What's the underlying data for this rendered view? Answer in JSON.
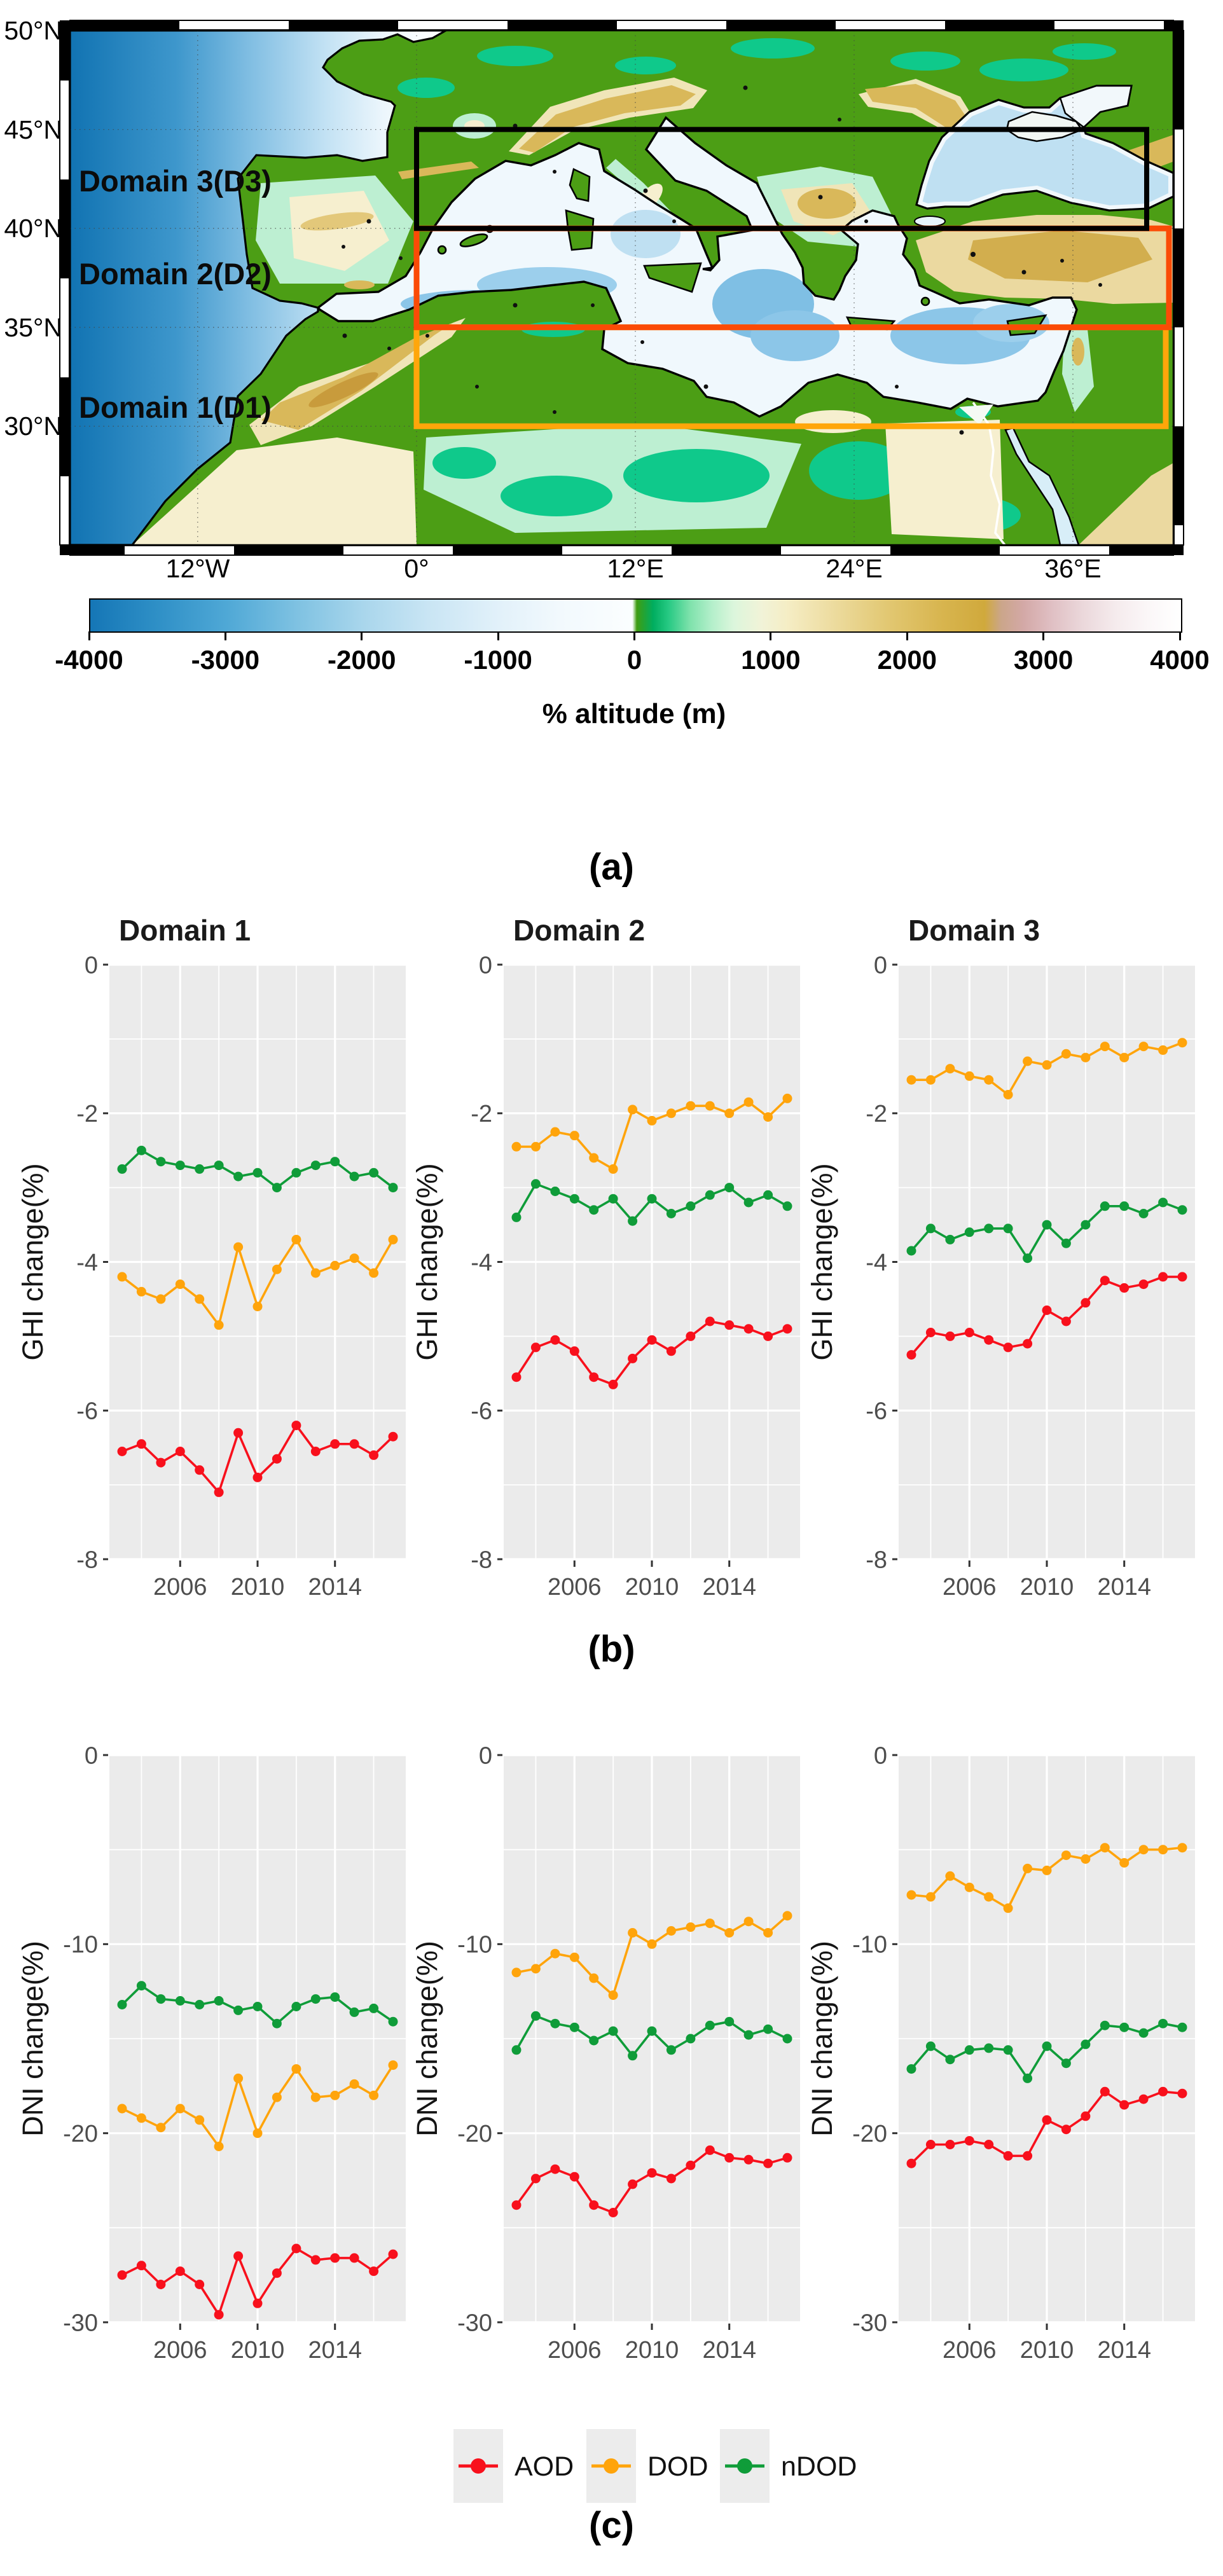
{
  "figure": {
    "panel_labels": {
      "a": "(a)",
      "b": "(b)",
      "c": "(c)"
    }
  },
  "map": {
    "lat_labels": [
      "50°N",
      "45°N",
      "40°N",
      "35°N",
      "30°N"
    ],
    "lon_labels": [
      "12°W",
      "0°",
      "12°E",
      "24°E",
      "36°E"
    ],
    "domains": [
      {
        "label": "Domain 3(D3)",
        "color": "#000000",
        "lat_range": "40N-45N"
      },
      {
        "label": "Domain 2(D2)",
        "color": "#FB4B06",
        "lat_range": "35N-40N"
      },
      {
        "label": "Domain 1(D1)",
        "color": "#FFA60A",
        "lat_range": "30N-35N"
      }
    ]
  },
  "colorbar": {
    "ticks": [
      "-4000",
      "-3000",
      "-2000",
      "-1000",
      "0",
      "1000",
      "2000",
      "3000",
      "4000"
    ],
    "label": "% altitude (m)"
  },
  "legend": {
    "items": [
      {
        "label": "AOD",
        "color": "#F8101C"
      },
      {
        "label": "DOD",
        "color": "#FFA40B"
      },
      {
        "label": "nDOD",
        "color": "#0F9C39"
      }
    ]
  },
  "style": {
    "panel_bg": "#EBEBEB",
    "grid": "#FFFFFF",
    "tick_text": "#4D4D4D",
    "title_text": "#1A1A1A"
  },
  "chart_data": [
    {
      "id": "ghi-d1",
      "type": "line",
      "title": "Domain 1",
      "ylabel": "GHI change(%)",
      "x": [
        2003,
        2004,
        2005,
        2006,
        2007,
        2008,
        2009,
        2010,
        2011,
        2012,
        2013,
        2014,
        2015,
        2016,
        2017
      ],
      "xticks": [
        2006,
        2010,
        2014
      ],
      "xminor": [
        2004,
        2008,
        2012,
        2016
      ],
      "ylim": [
        -8,
        0
      ],
      "yticks": [
        0,
        -2,
        -4,
        -6,
        -8
      ],
      "yminor": [
        -1,
        -3,
        -5,
        -7
      ],
      "series": [
        {
          "name": "AOD",
          "values": [
            -6.55,
            -6.45,
            -6.7,
            -6.55,
            -6.8,
            -7.1,
            -6.3,
            -6.9,
            -6.65,
            -6.2,
            -6.55,
            -6.45,
            -6.45,
            -6.6,
            -6.35
          ]
        },
        {
          "name": "DOD",
          "values": [
            -4.2,
            -4.4,
            -4.5,
            -4.3,
            -4.5,
            -4.85,
            -3.8,
            -4.6,
            -4.1,
            -3.7,
            -4.15,
            -4.05,
            -3.95,
            -4.15,
            -3.7
          ]
        },
        {
          "name": "nDOD",
          "values": [
            -2.75,
            -2.5,
            -2.65,
            -2.7,
            -2.75,
            -2.7,
            -2.85,
            -2.8,
            -3.0,
            -2.8,
            -2.7,
            -2.65,
            -2.85,
            -2.8,
            -3.0
          ]
        }
      ]
    },
    {
      "id": "ghi-d2",
      "type": "line",
      "title": "Domain 2",
      "ylabel": "GHI change(%)",
      "x": [
        2003,
        2004,
        2005,
        2006,
        2007,
        2008,
        2009,
        2010,
        2011,
        2012,
        2013,
        2014,
        2015,
        2016,
        2017
      ],
      "xticks": [
        2006,
        2010,
        2014
      ],
      "xminor": [
        2004,
        2008,
        2012,
        2016
      ],
      "ylim": [
        -8,
        0
      ],
      "yticks": [
        0,
        -2,
        -4,
        -6,
        -8
      ],
      "yminor": [
        -1,
        -3,
        -5,
        -7
      ],
      "series": [
        {
          "name": "AOD",
          "values": [
            -5.55,
            -5.15,
            -5.05,
            -5.2,
            -5.55,
            -5.65,
            -5.3,
            -5.05,
            -5.2,
            -5.0,
            -4.8,
            -4.85,
            -4.9,
            -5.0,
            -4.9
          ]
        },
        {
          "name": "DOD",
          "values": [
            -2.45,
            -2.45,
            -2.25,
            -2.3,
            -2.6,
            -2.75,
            -1.95,
            -2.1,
            -2.0,
            -1.9,
            -1.9,
            -2.0,
            -1.85,
            -2.05,
            -1.8
          ]
        },
        {
          "name": "nDOD",
          "values": [
            -3.4,
            -2.95,
            -3.05,
            -3.15,
            -3.3,
            -3.15,
            -3.45,
            -3.15,
            -3.35,
            -3.25,
            -3.1,
            -3.0,
            -3.2,
            -3.1,
            -3.25
          ]
        }
      ]
    },
    {
      "id": "ghi-d3",
      "type": "line",
      "title": "Domain 3",
      "ylabel": "GHI change(%)",
      "x": [
        2003,
        2004,
        2005,
        2006,
        2007,
        2008,
        2009,
        2010,
        2011,
        2012,
        2013,
        2014,
        2015,
        2016,
        2017
      ],
      "xticks": [
        2006,
        2010,
        2014
      ],
      "xminor": [
        2004,
        2008,
        2012,
        2016
      ],
      "ylim": [
        -8,
        0
      ],
      "yticks": [
        0,
        -2,
        -4,
        -6,
        -8
      ],
      "yminor": [
        -1,
        -3,
        -5,
        -7
      ],
      "series": [
        {
          "name": "AOD",
          "values": [
            -5.25,
            -4.95,
            -5.0,
            -4.95,
            -5.05,
            -5.15,
            -5.1,
            -4.65,
            -4.8,
            -4.55,
            -4.25,
            -4.35,
            -4.3,
            -4.2,
            -4.2
          ]
        },
        {
          "name": "DOD",
          "values": [
            -1.55,
            -1.55,
            -1.4,
            -1.5,
            -1.55,
            -1.75,
            -1.3,
            -1.35,
            -1.2,
            -1.25,
            -1.1,
            -1.25,
            -1.1,
            -1.15,
            -1.05
          ]
        },
        {
          "name": "nDOD",
          "values": [
            -3.85,
            -3.55,
            -3.7,
            -3.6,
            -3.55,
            -3.55,
            -3.95,
            -3.5,
            -3.75,
            -3.5,
            -3.25,
            -3.25,
            -3.35,
            -3.2,
            -3.3
          ]
        }
      ]
    },
    {
      "id": "dni-d1",
      "type": "line",
      "title": "",
      "ylabel": "DNI change(%)",
      "x": [
        2003,
        2004,
        2005,
        2006,
        2007,
        2008,
        2009,
        2010,
        2011,
        2012,
        2013,
        2014,
        2015,
        2016,
        2017
      ],
      "xticks": [
        2006,
        2010,
        2014
      ],
      "xminor": [
        2004,
        2008,
        2012,
        2016
      ],
      "ylim": [
        -30,
        0
      ],
      "yticks": [
        0,
        -10,
        -20,
        -30
      ],
      "yminor": [
        -5,
        -15,
        -25
      ],
      "series": [
        {
          "name": "AOD",
          "values": [
            -27.5,
            -27.0,
            -28.0,
            -27.3,
            -28.0,
            -29.6,
            -26.5,
            -29.0,
            -27.4,
            -26.1,
            -26.7,
            -26.6,
            -26.6,
            -27.3,
            -26.4
          ]
        },
        {
          "name": "DOD",
          "values": [
            -18.7,
            -19.2,
            -19.7,
            -18.7,
            -19.3,
            -20.7,
            -17.1,
            -20.0,
            -18.1,
            -16.6,
            -18.1,
            -18.0,
            -17.4,
            -18.0,
            -16.4
          ]
        },
        {
          "name": "nDOD",
          "values": [
            -13.2,
            -12.2,
            -12.9,
            -13.0,
            -13.2,
            -13.0,
            -13.5,
            -13.3,
            -14.2,
            -13.3,
            -12.9,
            -12.8,
            -13.6,
            -13.4,
            -14.1
          ]
        }
      ]
    },
    {
      "id": "dni-d2",
      "type": "line",
      "title": "",
      "ylabel": "DNI change(%)",
      "x": [
        2003,
        2004,
        2005,
        2006,
        2007,
        2008,
        2009,
        2010,
        2011,
        2012,
        2013,
        2014,
        2015,
        2016,
        2017
      ],
      "xticks": [
        2006,
        2010,
        2014
      ],
      "xminor": [
        2004,
        2008,
        2012,
        2016
      ],
      "ylim": [
        -30,
        0
      ],
      "yticks": [
        0,
        -10,
        -20,
        -30
      ],
      "yminor": [
        -5,
        -15,
        -25
      ],
      "series": [
        {
          "name": "AOD",
          "values": [
            -23.8,
            -22.4,
            -21.9,
            -22.3,
            -23.8,
            -24.2,
            -22.7,
            -22.1,
            -22.4,
            -21.7,
            -20.9,
            -21.3,
            -21.4,
            -21.6,
            -21.3
          ]
        },
        {
          "name": "DOD",
          "values": [
            -11.5,
            -11.3,
            -10.5,
            -10.7,
            -11.8,
            -12.7,
            -9.4,
            -10.0,
            -9.3,
            -9.1,
            -8.9,
            -9.4,
            -8.8,
            -9.4,
            -8.5
          ]
        },
        {
          "name": "nDOD",
          "values": [
            -15.6,
            -13.8,
            -14.2,
            -14.4,
            -15.1,
            -14.6,
            -15.9,
            -14.6,
            -15.6,
            -15.0,
            -14.3,
            -14.1,
            -14.8,
            -14.5,
            -15.0
          ]
        }
      ]
    },
    {
      "id": "dni-d3",
      "type": "line",
      "title": "",
      "ylabel": "DNI change(%)",
      "x": [
        2003,
        2004,
        2005,
        2006,
        2007,
        2008,
        2009,
        2010,
        2011,
        2012,
        2013,
        2014,
        2015,
        2016,
        2017
      ],
      "xticks": [
        2006,
        2010,
        2014
      ],
      "xminor": [
        2004,
        2008,
        2012,
        2016
      ],
      "ylim": [
        -30,
        0
      ],
      "yticks": [
        0,
        -10,
        -20,
        -30
      ],
      "yminor": [
        -5,
        -15,
        -25
      ],
      "series": [
        {
          "name": "AOD",
          "values": [
            -21.6,
            -20.6,
            -20.6,
            -20.4,
            -20.6,
            -21.2,
            -21.2,
            -19.3,
            -19.8,
            -19.1,
            -17.8,
            -18.5,
            -18.2,
            -17.8,
            -17.9
          ]
        },
        {
          "name": "DOD",
          "values": [
            -7.4,
            -7.5,
            -6.4,
            -7.0,
            -7.5,
            -8.1,
            -6.0,
            -6.1,
            -5.3,
            -5.5,
            -4.9,
            -5.7,
            -5.0,
            -5.0,
            -4.9
          ]
        },
        {
          "name": "nDOD",
          "values": [
            -16.6,
            -15.4,
            -16.1,
            -15.6,
            -15.5,
            -15.6,
            -17.1,
            -15.4,
            -16.3,
            -15.3,
            -14.3,
            -14.4,
            -14.7,
            -14.2,
            -14.4
          ]
        }
      ]
    }
  ]
}
